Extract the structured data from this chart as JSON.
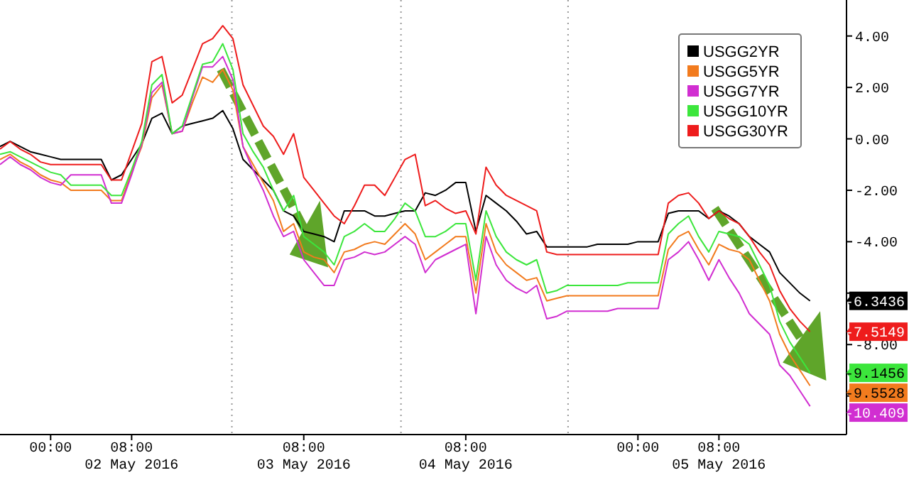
{
  "chart_data": {
    "type": "line",
    "categories": [
      null,
      null,
      null,
      null,
      null,
      "00:00",
      null,
      null,
      null,
      null,
      null,
      null,
      null,
      "08:00\n02 May 2016",
      null,
      null,
      null,
      null,
      null,
      null,
      null,
      null,
      null,
      null,
      null,
      null,
      null,
      null,
      null,
      null,
      "08:00\n03 May 2016",
      null,
      null,
      null,
      null,
      null,
      null,
      null,
      null,
      null,
      null,
      null,
      null,
      null,
      null,
      null,
      "08:00\n04 May 2016",
      null,
      null,
      null,
      null,
      null,
      null,
      null,
      null,
      null,
      null,
      null,
      null,
      null,
      null,
      null,
      null,
      "00:00",
      null,
      null,
      null,
      null,
      null,
      null,
      null,
      "08:00\n05 May 2016",
      null,
      null,
      null,
      null,
      null,
      null,
      null,
      null,
      null,
      null,
      null,
      null
    ],
    "series": [
      {
        "name": "USGG2YR",
        "color": "#000000",
        "values": [
          -0.3,
          -0.1,
          -0.3,
          -0.5,
          -0.6,
          -0.7,
          -0.8,
          -0.8,
          -0.8,
          -0.8,
          -0.8,
          -1.6,
          -1.4,
          -0.8,
          -0.2,
          0.8,
          1.0,
          0.2,
          0.5,
          0.6,
          0.7,
          0.8,
          1.1,
          0.4,
          -0.8,
          -1.2,
          -1.6,
          -2.0,
          -2.8,
          -3.0,
          -3.6,
          -3.7,
          -3.8,
          -4.0,
          -2.8,
          -2.8,
          -2.8,
          -3.0,
          -3.0,
          -2.9,
          -2.8,
          -2.8,
          -2.1,
          -2.2,
          -2.0,
          -1.7,
          -1.7,
          -3.6,
          -2.2,
          -2.5,
          -2.8,
          -3.2,
          -3.7,
          -3.6,
          -4.2,
          -4.2,
          -4.2,
          -4.2,
          -4.2,
          -4.1,
          -4.1,
          -4.1,
          -4.1,
          -4.0,
          -4.0,
          -4.0,
          -2.9,
          -2.8,
          -2.8,
          -2.8,
          -3.1,
          -2.8,
          -3.0,
          -3.3,
          -3.8,
          -4.1,
          -4.4,
          -5.2,
          -5.6,
          -6.0,
          -6.3,
          null,
          null,
          null
        ]
      },
      {
        "name": "USGG5YR",
        "color": "#f27b1e",
        "values": [
          -0.8,
          -0.6,
          -0.9,
          -1.1,
          -1.4,
          -1.6,
          -1.7,
          -2.0,
          -2.0,
          -2.0,
          -2.0,
          -2.4,
          -2.4,
          -1.3,
          -0.3,
          1.6,
          2.1,
          0.2,
          0.3,
          1.4,
          2.4,
          2.2,
          2.7,
          1.9,
          -0.3,
          -1.0,
          -1.7,
          -2.4,
          -3.6,
          -3.3,
          -4.4,
          -4.6,
          -4.7,
          -5.2,
          -4.4,
          -4.3,
          -4.1,
          -4.0,
          -4.1,
          -3.7,
          -3.3,
          -3.7,
          -4.7,
          -4.4,
          -4.1,
          -3.8,
          -3.8,
          -6.0,
          -3.3,
          -4.4,
          -4.9,
          -5.2,
          -5.5,
          -5.4,
          -6.3,
          -6.2,
          -6.1,
          -6.1,
          -6.1,
          -6.1,
          -6.1,
          -6.1,
          -6.1,
          -6.1,
          -6.1,
          -6.1,
          -4.3,
          -3.8,
          -3.6,
          -4.3,
          -4.9,
          -4.1,
          -4.3,
          -4.4,
          -4.7,
          -5.5,
          -6.3,
          -7.6,
          -8.4,
          -9.0,
          -9.6,
          null,
          null,
          null
        ]
      },
      {
        "name": "USGG7YR",
        "color": "#d12ed1",
        "values": [
          -1.0,
          -0.7,
          -1.0,
          -1.2,
          -1.5,
          -1.7,
          -1.8,
          -1.4,
          -1.4,
          -1.4,
          -1.4,
          -2.5,
          -2.5,
          -1.4,
          -0.2,
          1.8,
          2.2,
          0.2,
          0.3,
          1.6,
          2.8,
          2.8,
          3.2,
          2.3,
          -0.3,
          -1.2,
          -2.0,
          -3.0,
          -3.8,
          -3.6,
          -4.7,
          -5.2,
          -5.7,
          -5.7,
          -4.7,
          -4.6,
          -4.4,
          -4.5,
          -4.4,
          -4.1,
          -3.8,
          -4.1,
          -5.2,
          -4.7,
          -4.5,
          -4.3,
          -4.1,
          -6.8,
          -3.8,
          -4.9,
          -5.5,
          -5.8,
          -6.0,
          -5.7,
          -7.0,
          -6.9,
          -6.7,
          -6.7,
          -6.7,
          -6.7,
          -6.7,
          -6.6,
          -6.6,
          -6.6,
          -6.6,
          -6.6,
          -4.7,
          -4.4,
          -4.0,
          -4.7,
          -5.5,
          -4.7,
          -5.4,
          -6.0,
          -6.8,
          -7.2,
          -7.6,
          -8.8,
          -9.2,
          -9.8,
          -10.4,
          null,
          null,
          null
        ]
      },
      {
        "name": "USGG10YR",
        "color": "#3ce63c",
        "values": [
          -0.6,
          -0.5,
          -0.7,
          -0.9,
          -1.1,
          -1.3,
          -1.4,
          -1.8,
          -1.8,
          -1.8,
          -1.8,
          -2.2,
          -2.2,
          -1.2,
          -0.1,
          2.1,
          2.5,
          0.2,
          0.5,
          1.7,
          2.9,
          3.0,
          3.7,
          2.7,
          0.2,
          -0.5,
          -1.1,
          -2.0,
          -2.8,
          -2.2,
          -3.8,
          -4.1,
          -4.4,
          -4.9,
          -3.8,
          -3.6,
          -3.3,
          -3.6,
          -3.6,
          -3.1,
          -2.5,
          -2.8,
          -3.8,
          -3.8,
          -3.6,
          -3.3,
          -3.3,
          -5.5,
          -2.8,
          -3.8,
          -4.4,
          -4.7,
          -4.9,
          -4.7,
          -6.0,
          -5.9,
          -5.7,
          -5.7,
          -5.7,
          -5.7,
          -5.7,
          -5.7,
          -5.6,
          -5.6,
          -5.6,
          -5.6,
          -3.7,
          -3.3,
          -3.0,
          -3.8,
          -4.4,
          -3.6,
          -3.7,
          -3.8,
          -4.1,
          -4.9,
          -5.7,
          -7.1,
          -7.9,
          -8.5,
          -9.1,
          null,
          null,
          null
        ]
      },
      {
        "name": "USGG30YR",
        "color": "#ee1c1c",
        "values": [
          -0.4,
          -0.1,
          -0.4,
          -0.6,
          -0.9,
          -1.0,
          -1.0,
          -1.0,
          -1.0,
          -1.0,
          -1.0,
          -1.6,
          -1.6,
          -0.5,
          0.6,
          3.0,
          3.2,
          1.4,
          1.7,
          2.7,
          3.7,
          3.9,
          4.4,
          3.9,
          2.1,
          1.3,
          0.5,
          0.1,
          -0.6,
          0.2,
          -1.5,
          -2.0,
          -2.5,
          -3.0,
          -3.3,
          -2.6,
          -1.8,
          -1.8,
          -2.2,
          -1.5,
          -0.8,
          -0.6,
          -2.6,
          -2.4,
          -2.7,
          -2.9,
          -2.8,
          -3.7,
          -1.1,
          -1.8,
          -2.2,
          -2.4,
          -2.6,
          -2.8,
          -4.4,
          -4.5,
          -4.5,
          -4.5,
          -4.5,
          -4.5,
          -4.5,
          -4.5,
          -4.5,
          -4.5,
          -4.5,
          -4.5,
          -2.5,
          -2.2,
          -2.1,
          -2.5,
          -3.1,
          -2.8,
          -3.1,
          -3.3,
          -3.8,
          -4.4,
          -4.9,
          -5.9,
          -6.6,
          -7.1,
          -7.5,
          null,
          null,
          null
        ]
      }
    ],
    "ylim": [
      -11.5,
      5.4
    ],
    "yticks": [
      {
        "value": 4,
        "label": "4.00"
      },
      {
        "value": 2,
        "label": "2.00"
      },
      {
        "value": 0,
        "label": "0.00"
      },
      {
        "value": -2,
        "label": "-2.00"
      },
      {
        "value": -4,
        "label": "-4.00"
      },
      {
        "value": -6,
        "label": null
      },
      {
        "value": -8,
        "label": "-8.00"
      },
      {
        "value": -10,
        "label": null
      }
    ],
    "annotations": [
      "-6.3436",
      "-9.5528",
      "-10.409",
      "-9.1456",
      "-7.5149"
    ],
    "legend": "top right"
  }
}
